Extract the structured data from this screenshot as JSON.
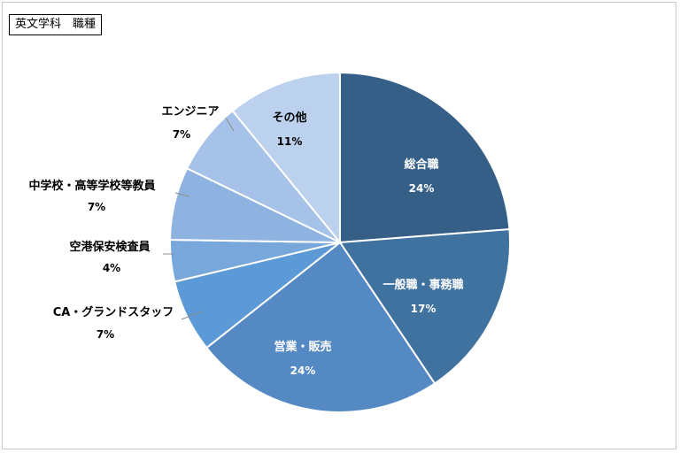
{
  "title": "英文学科　職種",
  "chart_data": {
    "type": "pie",
    "start_angle_deg": 0,
    "direction": "clockwise",
    "slices": [
      {
        "label": "総合職",
        "value": 24,
        "display": "24%",
        "color": "#355f87",
        "label_position": "inside"
      },
      {
        "label": "一般職・事務職",
        "value": 17,
        "display": "17%",
        "color": "#40729f",
        "label_position": "inside"
      },
      {
        "label": "営業・販売",
        "value": 24,
        "display": "24%",
        "color": "#5489c3",
        "label_position": "inside"
      },
      {
        "label": "CA・グランドスタッフ",
        "value": 7,
        "display": "7%",
        "color": "#5b9ad6",
        "label_position": "outside"
      },
      {
        "label": "空港保安検査員",
        "value": 4,
        "display": "4%",
        "color": "#78a7dc",
        "label_position": "outside"
      },
      {
        "label": "中学校・高等学校等教員",
        "value": 7,
        "display": "7%",
        "color": "#8fb3e0",
        "label_position": "outside"
      },
      {
        "label": "エンジニア",
        "value": 7,
        "display": "7%",
        "color": "#a6c2e8",
        "label_position": "outside"
      },
      {
        "label": "その他",
        "value": 11,
        "display": "11%",
        "color": "#bcd1ed",
        "label_position": "inside"
      }
    ]
  }
}
